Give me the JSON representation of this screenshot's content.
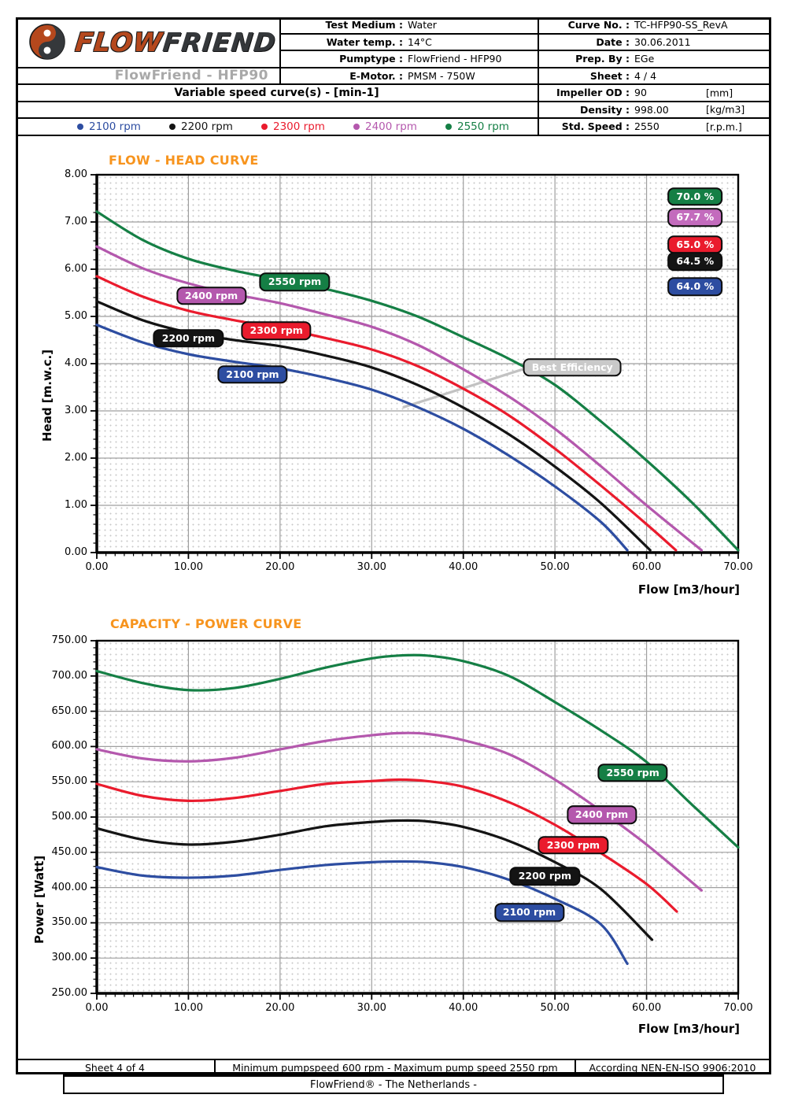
{
  "header": {
    "logo": {
      "flow": "FLOW",
      "friend": "FRIEND"
    },
    "brand_subtitle": "FlowFriend - HFP90",
    "variable_speed_title": "Variable speed curve(s) -  [min-1]",
    "info_mid": [
      {
        "label": "Test Medium :",
        "value": "Water"
      },
      {
        "label": "Water temp. :",
        "value": "14°C"
      },
      {
        "label": "Pumptype :",
        "value": "FlowFriend - HFP90"
      },
      {
        "label": "E-Motor. :",
        "value": "PMSM - 750W"
      }
    ],
    "info_right": [
      {
        "label": "Curve No. :",
        "value": "TC-HFP90-SS_RevA",
        "unit": ""
      },
      {
        "label": "Date :",
        "value": "30.06.2011",
        "unit": ""
      },
      {
        "label": "Prep. By :",
        "value": "EGe",
        "unit": ""
      },
      {
        "label": "Sheet :",
        "value": "4 / 4",
        "unit": ""
      },
      {
        "label": "Impeller OD :",
        "value": "90",
        "unit": "[mm]"
      },
      {
        "label": "Density :",
        "value": "998.00",
        "unit": "[kg/m3]"
      },
      {
        "label": "Std. Speed :",
        "value": "2550",
        "unit": "[r.p.m.]"
      }
    ]
  },
  "legend": {
    "items": [
      {
        "label": "2100 rpm",
        "color": "#2d4da1"
      },
      {
        "label": "2200 rpm",
        "color": "#141414"
      },
      {
        "label": "2300 rpm",
        "color": "#ea1b2d"
      },
      {
        "label": "2400 rpm",
        "color": "#b458ad"
      },
      {
        "label": "2550 rpm",
        "color": "#157f45"
      }
    ]
  },
  "chart_data": [
    {
      "type": "line",
      "title": "FLOW - HEAD CURVE",
      "xlabel": "Flow [m3/hour]",
      "ylabel": "Head [m.w.c.]",
      "xlim": [
        0,
        70
      ],
      "ylim": [
        0,
        8
      ],
      "grid": true,
      "xticks": [
        "0.00",
        "10.00",
        "20.00",
        "30.00",
        "40.00",
        "50.00",
        "60.00",
        "70.00"
      ],
      "yticks": [
        "0.00",
        "1.00",
        "2.00",
        "3.00",
        "4.00",
        "5.00",
        "6.00",
        "7.00",
        "8.00"
      ],
      "series": [
        {
          "name": "2100 rpm",
          "color": "#2d4da1",
          "points": [
            [
              0,
              4.82
            ],
            [
              5,
              4.45
            ],
            [
              10,
              4.2
            ],
            [
              15,
              4.04
            ],
            [
              20,
              3.9
            ],
            [
              25,
              3.7
            ],
            [
              30,
              3.45
            ],
            [
              35,
              3.08
            ],
            [
              40,
              2.62
            ],
            [
              45,
              2.05
            ],
            [
              50,
              1.4
            ],
            [
              55,
              0.65
            ],
            [
              57.9,
              0.05
            ]
          ]
        },
        {
          "name": "2200 rpm",
          "color": "#141414",
          "points": [
            [
              0,
              5.32
            ],
            [
              5,
              4.92
            ],
            [
              10,
              4.66
            ],
            [
              15,
              4.5
            ],
            [
              20,
              4.37
            ],
            [
              25,
              4.17
            ],
            [
              30,
              3.92
            ],
            [
              35,
              3.55
            ],
            [
              40,
              3.07
            ],
            [
              45,
              2.5
            ],
            [
              50,
              1.82
            ],
            [
              55,
              1.05
            ],
            [
              60.4,
              0.05
            ]
          ]
        },
        {
          "name": "2300 rpm",
          "color": "#ea1b2d",
          "points": [
            [
              0,
              5.85
            ],
            [
              5,
              5.42
            ],
            [
              10,
              5.12
            ],
            [
              15,
              4.92
            ],
            [
              20,
              4.75
            ],
            [
              25,
              4.54
            ],
            [
              30,
              4.3
            ],
            [
              35,
              3.95
            ],
            [
              40,
              3.47
            ],
            [
              45,
              2.9
            ],
            [
              50,
              2.2
            ],
            [
              55,
              1.42
            ],
            [
              60,
              0.6
            ],
            [
              63.2,
              0.05
            ]
          ]
        },
        {
          "name": "2400 rpm",
          "color": "#b458ad",
          "points": [
            [
              0,
              6.48
            ],
            [
              5,
              6.02
            ],
            [
              10,
              5.7
            ],
            [
              15,
              5.47
            ],
            [
              20,
              5.28
            ],
            [
              25,
              5.04
            ],
            [
              30,
              4.78
            ],
            [
              35,
              4.4
            ],
            [
              40,
              3.88
            ],
            [
              45,
              3.3
            ],
            [
              50,
              2.62
            ],
            [
              55,
              1.83
            ],
            [
              60,
              1.0
            ],
            [
              66,
              0.05
            ]
          ]
        },
        {
          "name": "2550 rpm",
          "color": "#157f45",
          "points": [
            [
              0,
              7.22
            ],
            [
              5,
              6.62
            ],
            [
              10,
              6.22
            ],
            [
              15,
              5.97
            ],
            [
              20,
              5.78
            ],
            [
              25,
              5.58
            ],
            [
              30,
              5.33
            ],
            [
              35,
              5.0
            ],
            [
              40,
              4.56
            ],
            [
              45,
              4.1
            ],
            [
              50,
              3.55
            ],
            [
              55,
              2.78
            ],
            [
              60,
              1.95
            ],
            [
              65,
              1.05
            ],
            [
              70,
              0.05
            ]
          ]
        }
      ],
      "curve_labels": [
        {
          "label": "2100 rpm",
          "color": "#2d4da1",
          "x": 17.0,
          "y": 3.77
        },
        {
          "label": "2200 rpm",
          "color": "#141414",
          "x": 10.0,
          "y": 4.54
        },
        {
          "label": "2300 rpm",
          "color": "#ea1b2d",
          "x": 19.6,
          "y": 4.7
        },
        {
          "label": "2400 rpm",
          "color": "#b458ad",
          "x": 12.5,
          "y": 5.44
        },
        {
          "label": "2550 rpm",
          "color": "#157f45",
          "x": 21.6,
          "y": 5.73
        }
      ],
      "efficiency_labels": [
        {
          "label": "70.0 %",
          "color": "#157f45",
          "x": 65.3,
          "y": 7.54
        },
        {
          "label": "67.7 %",
          "color": "#c36bbd",
          "x": 65.3,
          "y": 7.1
        },
        {
          "label": "65.0 %",
          "color": "#ea1b2d",
          "x": 65.3,
          "y": 6.52
        },
        {
          "label": "64.5 %",
          "color": "#141414",
          "x": 65.3,
          "y": 6.16
        },
        {
          "label": "64.0 %",
          "color": "#2d4da1",
          "x": 65.3,
          "y": 5.63
        }
      ],
      "best_efficiency": {
        "label": "Best Efficiency",
        "line_color": "#c2c2c2",
        "badge_color": "#c9c9c9",
        "line": [
          [
            33.5,
            3.08
          ],
          [
            47.3,
            3.93
          ]
        ],
        "label_x": 51.9,
        "label_y": 3.92
      }
    },
    {
      "type": "line",
      "title": "CAPACITY - POWER CURVE",
      "xlabel": "Flow [m3/hour]",
      "ylabel": "Power [Watt]",
      "xlim": [
        0,
        70
      ],
      "ylim": [
        250,
        750
      ],
      "grid": true,
      "xticks": [
        "0.00",
        "10.00",
        "20.00",
        "30.00",
        "40.00",
        "50.00",
        "60.00",
        "70.00"
      ],
      "yticks": [
        "250.00",
        "300.00",
        "350.00",
        "400.00",
        "450.00",
        "500.00",
        "550.00",
        "600.00",
        "650.00",
        "700.00",
        "750.00"
      ],
      "series": [
        {
          "name": "2100 rpm",
          "color": "#2d4da1",
          "points": [
            [
              0,
              429
            ],
            [
              5,
              417
            ],
            [
              10,
              414
            ],
            [
              15,
              417
            ],
            [
              20,
              425
            ],
            [
              25,
              432
            ],
            [
              30,
              436
            ],
            [
              33,
              437
            ],
            [
              36,
              436
            ],
            [
              40,
              429
            ],
            [
              45,
              411
            ],
            [
              50,
              384
            ],
            [
              55,
              348
            ],
            [
              57.9,
              292
            ]
          ]
        },
        {
          "name": "2200 rpm",
          "color": "#141414",
          "points": [
            [
              0,
              484
            ],
            [
              5,
              468
            ],
            [
              10,
              461
            ],
            [
              15,
              465
            ],
            [
              20,
              475
            ],
            [
              25,
              487
            ],
            [
              30,
              493
            ],
            [
              33,
              495
            ],
            [
              36,
              494
            ],
            [
              40,
              486
            ],
            [
              45,
              466
            ],
            [
              50,
              436
            ],
            [
              55,
              398
            ],
            [
              60.6,
              326
            ]
          ]
        },
        {
          "name": "2300 rpm",
          "color": "#ea1b2d",
          "points": [
            [
              0,
              547
            ],
            [
              5,
              530
            ],
            [
              10,
              523
            ],
            [
              15,
              527
            ],
            [
              20,
              537
            ],
            [
              25,
              547
            ],
            [
              30,
              551
            ],
            [
              33,
              553
            ],
            [
              36,
              551
            ],
            [
              40,
              543
            ],
            [
              45,
              521
            ],
            [
              50,
              489
            ],
            [
              55,
              449
            ],
            [
              60,
              405
            ],
            [
              63.3,
              366
            ]
          ]
        },
        {
          "name": "2400 rpm",
          "color": "#b458ad",
          "points": [
            [
              0,
              596
            ],
            [
              5,
              583
            ],
            [
              10,
              579
            ],
            [
              15,
              584
            ],
            [
              20,
              596
            ],
            [
              25,
              608
            ],
            [
              30,
              616
            ],
            [
              33,
              619
            ],
            [
              36,
              618
            ],
            [
              40,
              609
            ],
            [
              45,
              589
            ],
            [
              50,
              553
            ],
            [
              55,
              509
            ],
            [
              60,
              461
            ],
            [
              66,
              396
            ]
          ]
        },
        {
          "name": "2550 rpm",
          "color": "#157f45",
          "points": [
            [
              0,
              707
            ],
            [
              5,
              690
            ],
            [
              10,
              680
            ],
            [
              15,
              683
            ],
            [
              20,
              696
            ],
            [
              25,
              712
            ],
            [
              30,
              725
            ],
            [
              33,
              729
            ],
            [
              36,
              729
            ],
            [
              40,
              721
            ],
            [
              45,
              700
            ],
            [
              50,
              663
            ],
            [
              55,
              623
            ],
            [
              60,
              578
            ],
            [
              65,
              517
            ],
            [
              70,
              457
            ]
          ]
        }
      ],
      "curve_labels": [
        {
          "label": "2100 rpm",
          "color": "#2d4da1",
          "x": 47.2,
          "y": 365
        },
        {
          "label": "2200 rpm",
          "color": "#141414",
          "x": 48.9,
          "y": 416
        },
        {
          "label": "2300 rpm",
          "color": "#ea1b2d",
          "x": 52.0,
          "y": 460
        },
        {
          "label": "2400 rpm",
          "color": "#b458ad",
          "x": 55.1,
          "y": 503
        },
        {
          "label": "2550 rpm",
          "color": "#157f45",
          "x": 58.5,
          "y": 563
        }
      ]
    }
  ],
  "footer": {
    "sheet": "Sheet 4 of 4",
    "speed_range": "Minimum pumpspeed 600 rpm - Maximum pump speed 2550 rpm",
    "standard": "According NEN-EN-ISO 9906:2010",
    "tagline": "FlowFriend®  - The Netherlands -"
  }
}
